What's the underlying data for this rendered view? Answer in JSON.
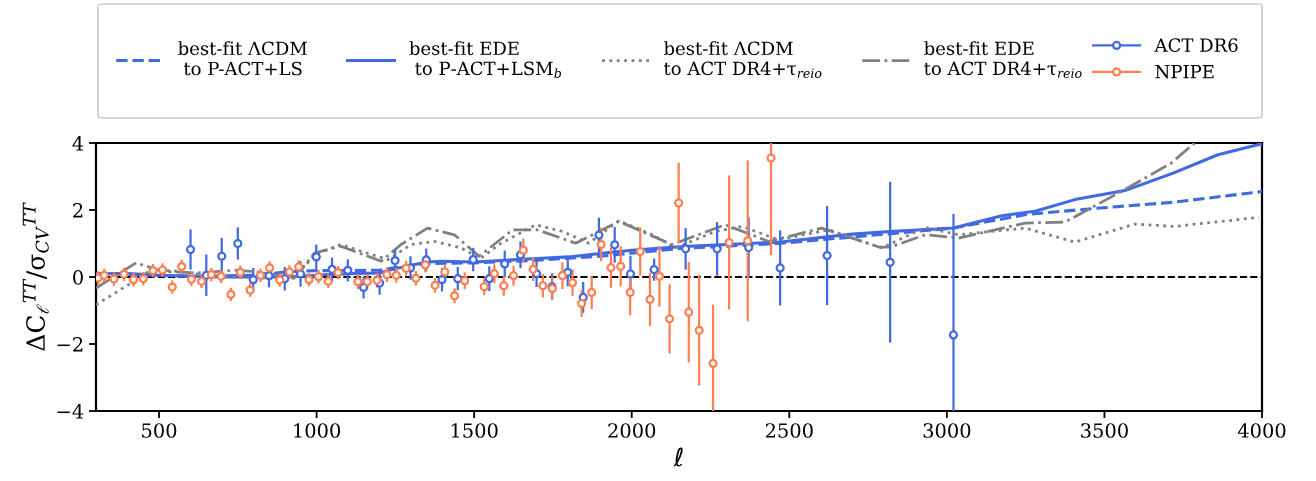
{
  "chart_data": {
    "type": "line",
    "xlabel": "ℓ",
    "ylabel": "ΔC$_{ℓ}$$^{TT}$/σ$_{CV}$$^{TT}$",
    "xlim": [
      300,
      4000
    ],
    "xticks": [
      500,
      1000,
      1500,
      2000,
      2500,
      3000,
      3500,
      4000
    ],
    "ylim": [
      -4,
      4
    ],
    "yticks": [
      -4,
      -2,
      0,
      2,
      4
    ],
    "grid": false,
    "legend": "top",
    "ref_lines": [
      {
        "axis": "y",
        "value": 0,
        "color": "#000000",
        "line_style": "dashed"
      }
    ],
    "series": [
      {
        "name": "best-fit ΛCDM\n to P-ACT+LS",
        "color": "#4169e1",
        "line_style": "dashed",
        "marker": "none",
        "x": [
          300,
          400,
          600,
          800,
          900,
          1000,
          1200,
          1250,
          1350,
          1500,
          1700,
          1900,
          2150,
          2466,
          2720,
          3021,
          3248,
          3459,
          3718,
          4000
        ],
        "values": [
          0.1,
          0.08,
          0.02,
          0.05,
          0.15,
          0.19,
          0.2,
          0.28,
          0.4,
          0.42,
          0.5,
          0.62,
          0.85,
          1.0,
          1.21,
          1.46,
          1.86,
          2.04,
          2.23,
          2.55
        ]
      },
      {
        "name": "best-fit EDE\n to P-ACT+LSM$_{b}$",
        "color": "#4169e1",
        "line_style": "solid",
        "marker": "none",
        "x": [
          300,
          400,
          500,
          700,
          900,
          1000,
          1100,
          1200,
          1250,
          1300,
          1350,
          1400,
          1500,
          1600,
          1700,
          1800,
          1900,
          2000,
          2150,
          2300,
          2466,
          2600,
          2700,
          2820,
          3021,
          3174,
          3280,
          3406,
          3565,
          3718,
          3860,
          4000
        ],
        "values": [
          0.1,
          0.1,
          0.05,
          0.0,
          0.0,
          0.05,
          0.1,
          0.12,
          0.25,
          0.35,
          0.45,
          0.47,
          0.45,
          0.5,
          0.55,
          0.6,
          0.7,
          0.8,
          0.9,
          0.97,
          1.04,
          1.18,
          1.28,
          1.36,
          1.46,
          1.83,
          1.96,
          2.31,
          2.58,
          3.1,
          3.65,
          3.98
        ]
      },
      {
        "name": "best-fit ΛCDM\nto ACT DR4+τ$_{reio}$",
        "color": "#808080",
        "line_style": "dotted",
        "marker": "none",
        "x": [
          300,
          403,
          476,
          561,
          667,
          825,
          930,
          994,
          1077,
          1141,
          1226,
          1300,
          1374,
          1458,
          1520,
          1579,
          1695,
          1780,
          1864,
          1959,
          2065,
          2139,
          2266,
          2350,
          2466,
          2625,
          2720,
          2794,
          2931,
          3037,
          3248,
          3406,
          3596,
          3723,
          3990
        ],
        "values": [
          -0.83,
          -0.23,
          0.22,
          0.17,
          0.02,
          -0.03,
          -0.03,
          0.67,
          0.97,
          0.77,
          0.52,
          0.97,
          1.06,
          0.87,
          0.55,
          0.97,
          1.56,
          1.36,
          1.01,
          1.68,
          1.26,
          0.87,
          1.36,
          1.51,
          1.11,
          1.41,
          1.1,
          0.87,
          1.48,
          1.26,
          1.46,
          1.04,
          1.58,
          1.51,
          1.78
        ]
      },
      {
        "name": "best-fit EDE\nto ACT DR4+τ$_{reio}$",
        "color": "#808080",
        "line_style": "dashdot",
        "marker": "none",
        "x": [
          300,
          427,
          511,
          617,
          744,
          797,
          930,
          994,
          1077,
          1205,
          1268,
          1352,
          1437,
          1516,
          1622,
          1700,
          1822,
          1959,
          2128,
          2297,
          2435,
          2603,
          2783,
          2820,
          2931,
          3037,
          3248,
          3375,
          3565,
          3712,
          3786
        ],
        "values": [
          -0.33,
          0.42,
          0.17,
          0.12,
          0.2,
          0.17,
          -0.03,
          0.72,
          0.92,
          0.47,
          0.97,
          1.46,
          1.26,
          0.62,
          1.41,
          1.41,
          1.01,
          1.66,
          0.97,
          1.56,
          1.06,
          1.46,
          0.9,
          0.89,
          1.26,
          1.16,
          1.61,
          1.64,
          2.61,
          3.4,
          4.0
        ]
      },
      {
        "name": "ACT DR6",
        "type": "scatter",
        "color": "#4169e1",
        "marker": "circle",
        "line_style": "solid",
        "x": [
          600,
          650,
          699,
          750,
          799,
          849,
          899,
          949,
          999,
          1049,
          1099,
          1149,
          1200,
          1249,
          1298,
          1348,
          1398,
          1448,
          1497,
          1548,
          1597,
          1647,
          1698,
          1747,
          1797,
          1846,
          1896,
          1946,
          1996,
          2071,
          2171,
          2271,
          2371,
          2471,
          2620,
          2820,
          3021
        ],
        "values": [
          0.82,
          0.05,
          0.62,
          1.0,
          -0.08,
          0.04,
          -0.05,
          0.09,
          0.6,
          0.23,
          0.2,
          -0.31,
          -0.18,
          0.49,
          0.27,
          0.51,
          -0.08,
          -0.05,
          0.52,
          -0.05,
          0.39,
          0.66,
          0.1,
          -0.29,
          0.14,
          -0.61,
          1.25,
          0.96,
          0.09,
          0.22,
          0.84,
          0.84,
          0.88,
          0.27,
          0.64,
          0.44,
          -1.73
        ],
        "errors": [
          0.6,
          0.62,
          0.55,
          0.48,
          0.35,
          0.35,
          0.35,
          0.38,
          0.37,
          0.35,
          0.33,
          0.33,
          0.35,
          0.33,
          0.35,
          0.34,
          0.35,
          0.35,
          0.35,
          0.37,
          0.4,
          0.4,
          0.4,
          0.4,
          0.42,
          0.46,
          0.52,
          0.53,
          0.54,
          0.33,
          0.62,
          0.8,
          0.9,
          1.12,
          1.48,
          2.4,
          3.61
        ]
      },
      {
        "name": "NPIPE",
        "type": "scatter",
        "color": "#ff7f50",
        "marker": "circle",
        "line_style": "solid",
        "x": [
          307,
          326,
          357,
          389,
          419,
          450,
          481,
          511,
          542,
          572,
          603,
          635,
          666,
          697,
          728,
          758,
          789,
          822,
          851,
          883,
          914,
          943,
          976,
          1006,
          1037,
          1068,
          1131,
          1161,
          1192,
          1223,
          1253,
          1284,
          1315,
          1345,
          1376,
          1407,
          1438,
          1470,
          1532,
          1564,
          1594,
          1625,
          1656,
          1687,
          1718,
          1748,
          1780,
          1812,
          1841,
          1873,
          1903,
          1934,
          1965,
          1995,
          2027,
          2058,
          2088,
          2120,
          2149,
          2181,
          2214,
          2258,
          2309,
          2368,
          2442
        ],
        "values": [
          -0.03,
          0.05,
          -0.06,
          0.08,
          -0.08,
          -0.05,
          0.19,
          0.21,
          -0.3,
          0.31,
          -0.07,
          -0.13,
          0.07,
          0.02,
          -0.52,
          0.14,
          -0.39,
          0.05,
          0.27,
          -0.09,
          0.15,
          0.3,
          -0.08,
          0.01,
          -0.13,
          0.13,
          -0.14,
          -0.14,
          -0.1,
          0.07,
          0.05,
          0.26,
          -0.04,
          0.36,
          -0.25,
          0.15,
          -0.56,
          -0.11,
          -0.29,
          0.1,
          -0.26,
          0.04,
          0.8,
          0.23,
          -0.26,
          -0.34,
          0.04,
          -0.17,
          -0.79,
          -0.46,
          0.97,
          0.28,
          0.32,
          -0.46,
          0.76,
          -0.67,
          0.02,
          -1.25,
          2.21,
          -1.05,
          -1.59,
          -2.58,
          1.03,
          1.08,
          3.55
        ],
        "errors": [
          0.2,
          0.2,
          0.2,
          0.2,
          0.2,
          0.2,
          0.2,
          0.2,
          0.2,
          0.2,
          0.2,
          0.2,
          0.2,
          0.2,
          0.2,
          0.2,
          0.2,
          0.2,
          0.2,
          0.2,
          0.2,
          0.2,
          0.2,
          0.2,
          0.2,
          0.2,
          0.22,
          0.22,
          0.22,
          0.22,
          0.22,
          0.22,
          0.22,
          0.22,
          0.22,
          0.22,
          0.22,
          0.25,
          0.25,
          0.28,
          0.3,
          0.3,
          0.35,
          0.35,
          0.35,
          0.35,
          0.4,
          0.4,
          0.4,
          0.5,
          0.5,
          0.6,
          0.6,
          0.68,
          0.72,
          0.8,
          0.9,
          1.03,
          1.2,
          1.5,
          1.65,
          1.75,
          2.0,
          2.4,
          2.9
        ]
      }
    ]
  }
}
